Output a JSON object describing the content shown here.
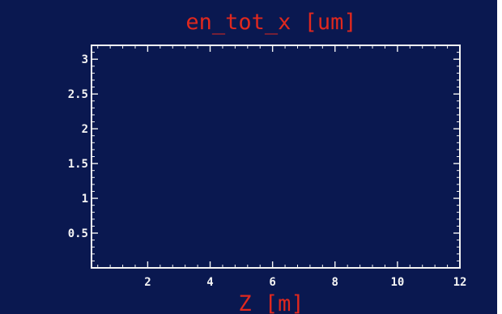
{
  "chart_data": {
    "type": "line",
    "title": "en_tot_x  [um]",
    "xlabel": "Z  [m]",
    "ylabel": "",
    "xlim": [
      0.2,
      12
    ],
    "ylim": [
      0,
      3.2
    ],
    "x_ticks": [
      2,
      4,
      6,
      8,
      10,
      12
    ],
    "x_tick_labels": [
      "2",
      "4",
      "6",
      "8",
      "10",
      "12"
    ],
    "y_ticks": [
      0.5,
      1,
      1.5,
      2,
      2.5,
      3
    ],
    "y_tick_labels": [
      "0.5",
      "1",
      "1.5",
      "2",
      "2.5",
      "3"
    ],
    "series": [
      {
        "x": [],
        "y": []
      }
    ],
    "grid": false,
    "colors": {
      "background": "#0a1850",
      "frame": "#f4f4f4",
      "title": "#e0281e"
    }
  }
}
